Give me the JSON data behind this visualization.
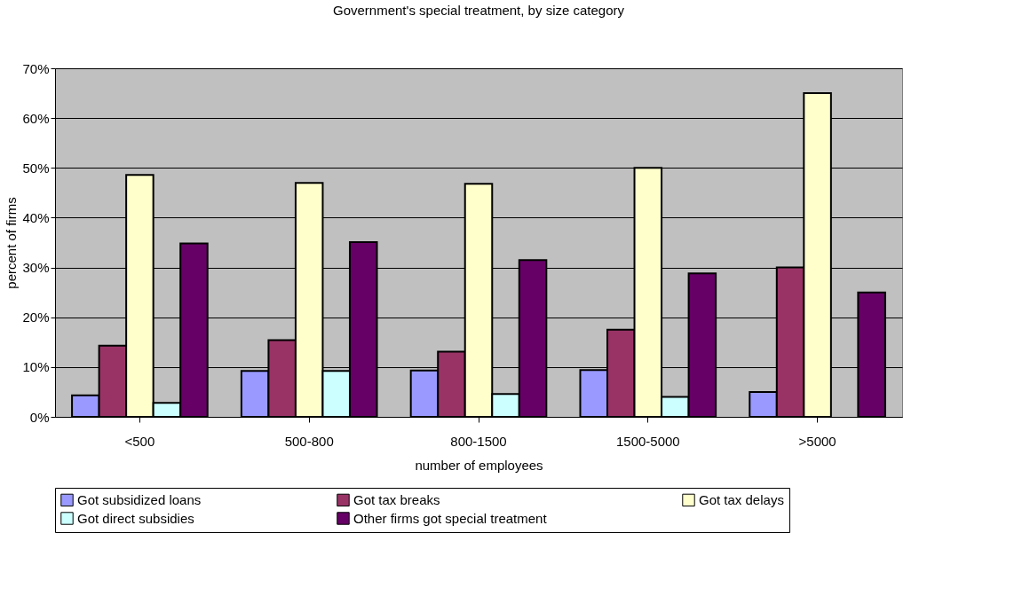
{
  "chart_data": {
    "type": "bar",
    "title": "Government's special treatment, by size category",
    "xlabel": "number of employees",
    "ylabel": "percent of firms",
    "categories": [
      "<500",
      "500-800",
      "800-1500",
      "1500-5000",
      ">5000"
    ],
    "series": [
      {
        "name": "Got subsidized loans",
        "color": "#9999ff",
        "values": [
          4.3,
          9.2,
          9.3,
          9.4,
          5.0
        ]
      },
      {
        "name": "Got tax breaks",
        "color": "#993366",
        "values": [
          14.3,
          15.4,
          13.1,
          17.5,
          30.0
        ]
      },
      {
        "name": "Got tax delays",
        "color": "#ffffcc",
        "values": [
          48.6,
          47.0,
          46.8,
          50.0,
          65.0
        ]
      },
      {
        "name": "Got direct subsidies",
        "color": "#ccffff",
        "values": [
          2.8,
          9.2,
          4.6,
          4.0,
          null
        ]
      },
      {
        "name": "Other firms got special treatment",
        "color": "#660066",
        "values": [
          34.8,
          35.1,
          31.5,
          28.8,
          25.0
        ]
      }
    ],
    "ylim": [
      0,
      70
    ],
    "yticks": [
      {
        "value": 0,
        "label": "0%"
      },
      {
        "value": 10,
        "label": "10%"
      },
      {
        "value": 20,
        "label": "20%"
      },
      {
        "value": 30,
        "label": "30%"
      },
      {
        "value": 40,
        "label": "40%"
      },
      {
        "value": 50,
        "label": "50%"
      },
      {
        "value": 60,
        "label": "60%"
      },
      {
        "value": 70,
        "label": "70%"
      }
    ],
    "grid": "y",
    "legend": "bottom"
  }
}
